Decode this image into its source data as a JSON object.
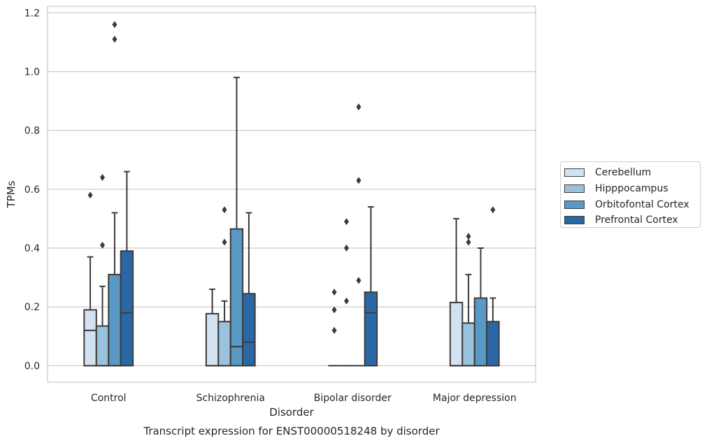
{
  "chart_data": {
    "type": "box",
    "title": "",
    "caption": "Transcript expression for ENST00000518248 by disorder",
    "xlabel": "Disorder",
    "ylabel": "TPMs",
    "ylim": [
      -0.056,
      1.222
    ],
    "yticks": [
      "0.0",
      "0.2",
      "0.4",
      "0.6",
      "0.8",
      "1.0",
      "1.2"
    ],
    "grid": "horizontal",
    "legend_position": "right",
    "categories": [
      "Control",
      "Schizophrenia",
      "Bipolar disorder",
      "Major depression"
    ],
    "series": [
      {
        "name": "Cerebellum",
        "color": "#d3e2f0",
        "boxes": [
          {
            "q1": 0.0,
            "median": 0.12,
            "q3": 0.19,
            "whisker_low": 0.0,
            "whisker_high": 0.37,
            "outliers": [
              0.58
            ]
          },
          {
            "q1": 0.0,
            "median": 0.0,
            "q3": 0.177,
            "whisker_low": 0.0,
            "whisker_high": 0.26,
            "outliers": []
          },
          {
            "q1": 0.0,
            "median": 0.0,
            "q3": 0.0,
            "whisker_low": 0.0,
            "whisker_high": 0.0,
            "outliers": [
              0.12,
              0.19,
              0.25
            ]
          },
          {
            "q1": 0.0,
            "median": 0.0,
            "q3": 0.215,
            "whisker_low": 0.0,
            "whisker_high": 0.5,
            "outliers": []
          }
        ]
      },
      {
        "name": "Hipppocampus",
        "color": "#9ac2dc",
        "boxes": [
          {
            "q1": 0.0,
            "median": 0.0,
            "q3": 0.135,
            "whisker_low": 0.0,
            "whisker_high": 0.27,
            "outliers": [
              0.41,
              0.64
            ]
          },
          {
            "q1": 0.0,
            "median": 0.0,
            "q3": 0.15,
            "whisker_low": 0.0,
            "whisker_high": 0.22,
            "outliers": [
              0.42,
              0.53
            ]
          },
          {
            "q1": 0.0,
            "median": 0.0,
            "q3": 0.0,
            "whisker_low": 0.0,
            "whisker_high": 0.0,
            "outliers": [
              0.22,
              0.4,
              0.49
            ]
          },
          {
            "q1": 0.0,
            "median": 0.0,
            "q3": 0.145,
            "whisker_low": 0.0,
            "whisker_high": 0.31,
            "outliers": [
              0.42,
              0.44
            ]
          }
        ]
      },
      {
        "name": "Orbitofontal Cortex",
        "color": "#5899c5",
        "boxes": [
          {
            "q1": 0.0,
            "median": 0.0,
            "q3": 0.31,
            "whisker_low": 0.0,
            "whisker_high": 0.52,
            "outliers": [
              1.11,
              1.16
            ]
          },
          {
            "q1": 0.0,
            "median": 0.065,
            "q3": 0.465,
            "whisker_low": 0.0,
            "whisker_high": 0.98,
            "outliers": []
          },
          {
            "q1": 0.0,
            "median": 0.0,
            "q3": 0.0,
            "whisker_low": 0.0,
            "whisker_high": 0.0,
            "outliers": [
              0.29,
              0.63,
              0.88
            ]
          },
          {
            "q1": 0.0,
            "median": 0.0,
            "q3": 0.23,
            "whisker_low": 0.0,
            "whisker_high": 0.4,
            "outliers": []
          }
        ]
      },
      {
        "name": "Prefrontal Cortex",
        "color": "#2a68a5",
        "boxes": [
          {
            "q1": 0.0,
            "median": 0.18,
            "q3": 0.39,
            "whisker_low": 0.0,
            "whisker_high": 0.66,
            "outliers": []
          },
          {
            "q1": 0.0,
            "median": 0.08,
            "q3": 0.245,
            "whisker_low": 0.0,
            "whisker_high": 0.52,
            "outliers": []
          },
          {
            "q1": 0.0,
            "median": 0.18,
            "q3": 0.25,
            "whisker_low": 0.0,
            "whisker_high": 0.54,
            "outliers": []
          },
          {
            "q1": 0.0,
            "median": 0.0,
            "q3": 0.15,
            "whisker_low": 0.0,
            "whisker_high": 0.23,
            "outliers": [
              0.53
            ]
          }
        ]
      }
    ]
  }
}
